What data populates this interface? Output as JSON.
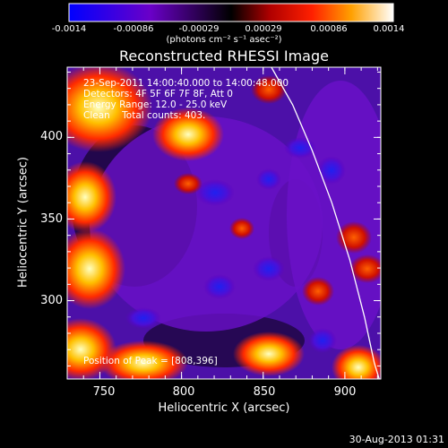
{
  "chart_data": {
    "type": "heatmap",
    "title": "Reconstructed RHESSI Image",
    "xlabel": "Heliocentric X (arcsec)",
    "ylabel": "Heliocentric Y (arcsec)",
    "xlim": [
      730,
      922
    ],
    "ylim": [
      252,
      443
    ],
    "x_ticks": [
      "750",
      "800",
      "850",
      "900"
    ],
    "y_ticks": [
      "300",
      "350",
      "400"
    ],
    "colorbar": {
      "ticks": [
        "-0.0014",
        "-0.00086",
        "-0.00029",
        "0.00029",
        "0.00086",
        "0.0014"
      ],
      "range": [
        -0.0014,
        0.0014
      ],
      "units": "(photons cm⁻² s⁻¹ asec⁻²)"
    },
    "annotations": [
      "23-Sep-2011 14:00:40.000 to 14:00:48.000",
      "Detectors: 4F 5F 6F 7F 8F, Att 0",
      "Energy Range: 12.0 - 25.0 keV",
      "Clean    Total counts: 403.",
      "Position of Peak = [808,396]"
    ],
    "peak": {
      "x": 808,
      "y": 396
    },
    "limb_curve": [
      [
        855,
        443
      ],
      [
        868,
        420
      ],
      [
        880,
        392
      ],
      [
        892,
        360
      ],
      [
        903,
        325
      ],
      [
        912,
        290
      ],
      [
        918,
        262
      ],
      [
        921,
        252
      ]
    ]
  },
  "footer": {
    "timestamp": "30-Aug-2013 01:31"
  },
  "colors": {
    "background": "#000000",
    "text": "#ffffff",
    "limb": "#ffffff"
  }
}
